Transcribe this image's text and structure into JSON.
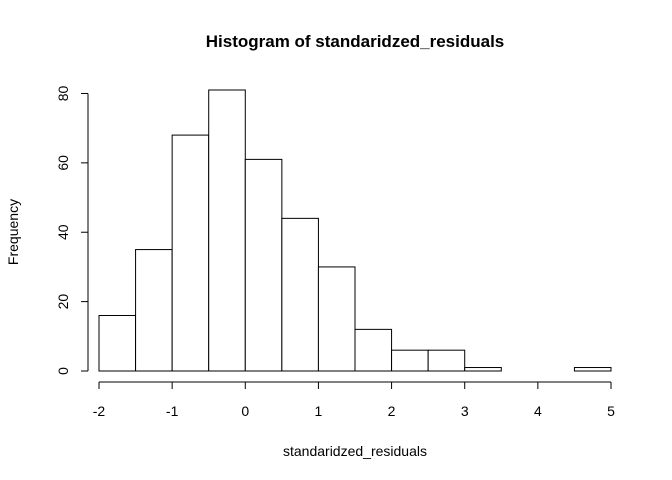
{
  "chart_data": {
    "type": "histogram",
    "title": "Histogram of standaridzed_residuals",
    "xlabel": "standaridzed_residuals",
    "ylabel": "Frequency",
    "bins": [
      {
        "x0": -2.0,
        "x1": -1.5,
        "count": 16
      },
      {
        "x0": -1.5,
        "x1": -1.0,
        "count": 35
      },
      {
        "x0": -1.0,
        "x1": -0.5,
        "count": 68
      },
      {
        "x0": -0.5,
        "x1": 0.0,
        "count": 81
      },
      {
        "x0": 0.0,
        "x1": 0.5,
        "count": 61
      },
      {
        "x0": 0.5,
        "x1": 1.0,
        "count": 44
      },
      {
        "x0": 1.0,
        "x1": 1.5,
        "count": 30
      },
      {
        "x0": 1.5,
        "x1": 2.0,
        "count": 12
      },
      {
        "x0": 2.0,
        "x1": 2.5,
        "count": 6
      },
      {
        "x0": 2.5,
        "x1": 3.0,
        "count": 6
      },
      {
        "x0": 3.0,
        "x1": 3.5,
        "count": 1
      },
      {
        "x0": 3.5,
        "x1": 4.0,
        "count": 0
      },
      {
        "x0": 4.0,
        "x1": 4.5,
        "count": 0
      },
      {
        "x0": 4.5,
        "x1": 5.0,
        "count": 1
      }
    ],
    "xlim": [
      -2,
      5
    ],
    "ylim": [
      0,
      81
    ],
    "xticks": [
      -2,
      -1,
      0,
      1,
      2,
      3,
      4,
      5
    ],
    "yticks": [
      0,
      20,
      40,
      60,
      80
    ],
    "grid": false,
    "legend": "none"
  }
}
